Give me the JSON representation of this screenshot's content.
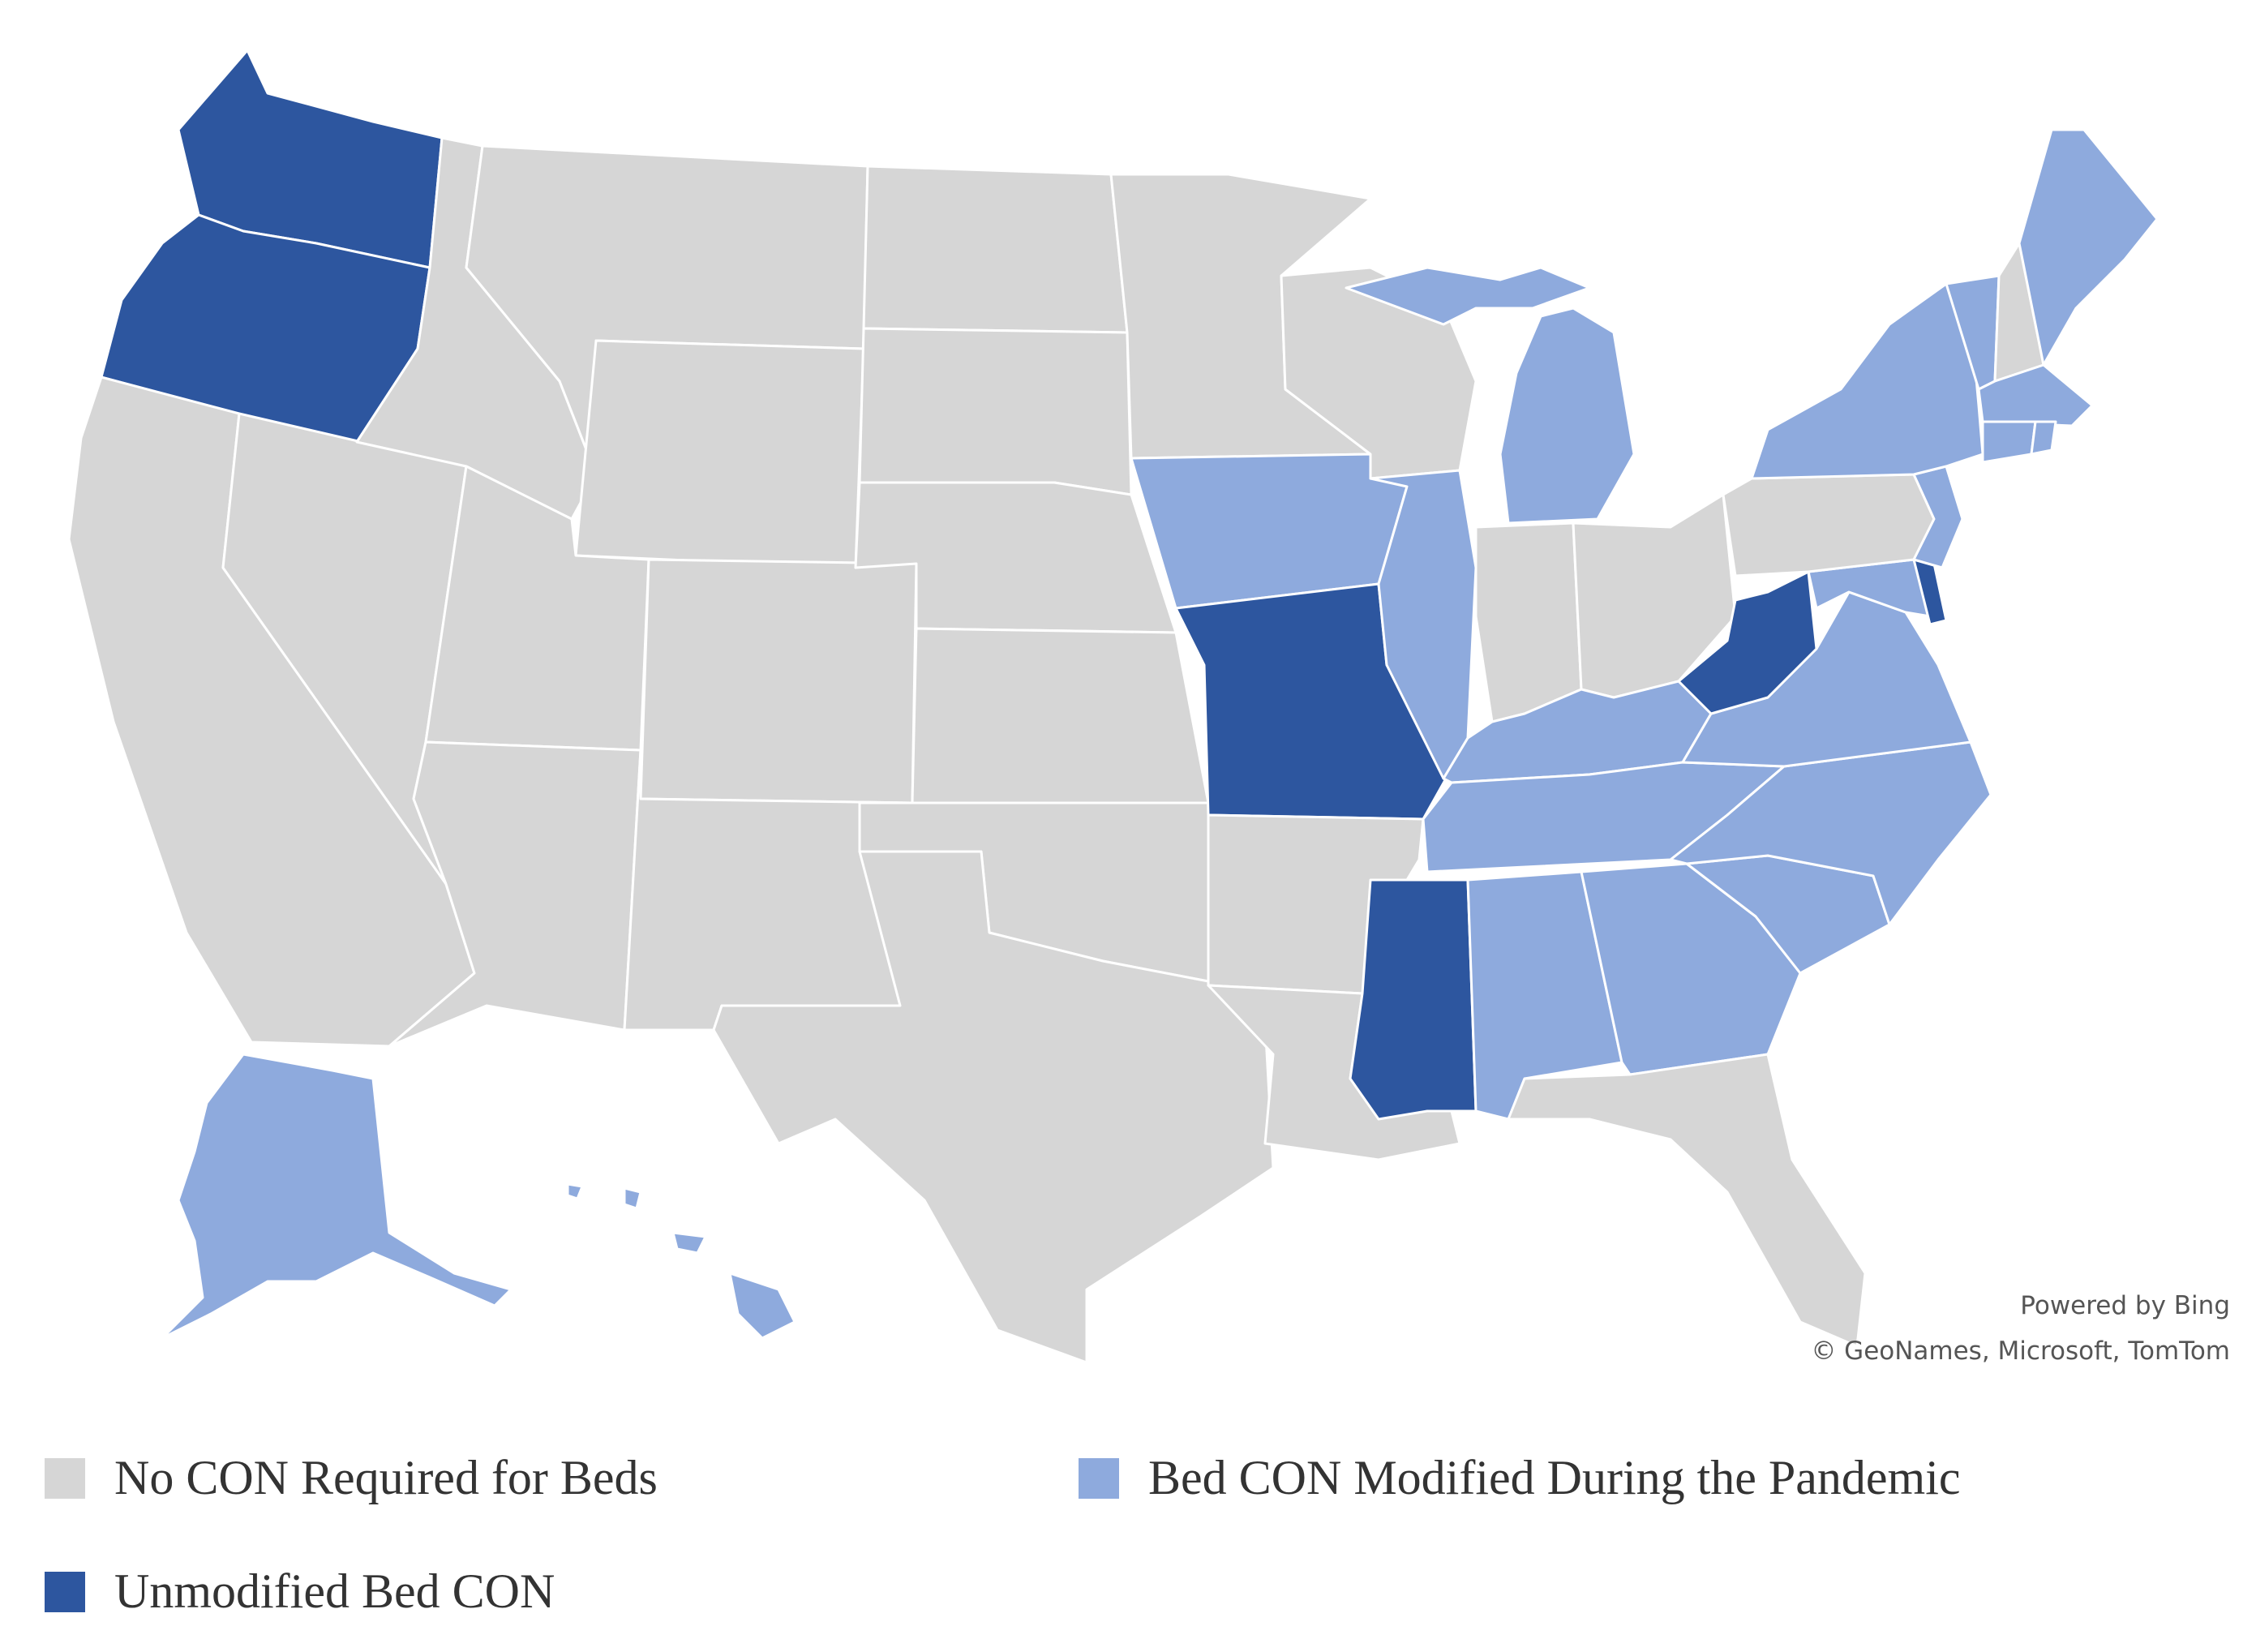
{
  "colors": {
    "no_con": "#d6d6d6",
    "modified": "#8eaadd",
    "unmodified": "#2d569f"
  },
  "attribution": {
    "powered": "Powered by Bing",
    "copyright": "© GeoNames, Microsoft, TomTom"
  },
  "legend": [
    {
      "label": "No CON Required for Beds",
      "category": "no_con"
    },
    {
      "label": "Bed CON Modified During the Pandemic",
      "category": "modified"
    },
    {
      "label": "Unmodified Bed CON",
      "category": "unmodified"
    }
  ],
  "regions": [
    {
      "name": "region-washington",
      "category": "unmodified"
    },
    {
      "name": "region-oregon",
      "category": "unmodified"
    },
    {
      "name": "region-missouri",
      "category": "unmodified"
    },
    {
      "name": "region-mississippi",
      "category": "unmodified"
    },
    {
      "name": "region-west-virginia",
      "category": "unmodified"
    },
    {
      "name": "region-delaware",
      "category": "unmodified"
    },
    {
      "name": "region-iowa",
      "category": "modified"
    },
    {
      "name": "region-illinois",
      "category": "modified"
    },
    {
      "name": "region-michigan-lower",
      "category": "modified"
    },
    {
      "name": "region-michigan-upper",
      "category": "modified"
    },
    {
      "name": "region-kentucky",
      "category": "modified"
    },
    {
      "name": "region-tennessee",
      "category": "modified"
    },
    {
      "name": "region-alabama",
      "category": "modified"
    },
    {
      "name": "region-georgia",
      "category": "modified"
    },
    {
      "name": "region-south-carolina",
      "category": "modified"
    },
    {
      "name": "region-north-carolina",
      "category": "modified"
    },
    {
      "name": "region-virginia",
      "category": "modified"
    },
    {
      "name": "region-maryland",
      "category": "modified"
    },
    {
      "name": "region-new-jersey",
      "category": "modified"
    },
    {
      "name": "region-new-york",
      "category": "modified"
    },
    {
      "name": "region-vermont",
      "category": "modified"
    },
    {
      "name": "region-maine",
      "category": "modified"
    },
    {
      "name": "region-massachusetts",
      "category": "modified"
    },
    {
      "name": "region-connecticut",
      "category": "modified"
    },
    {
      "name": "region-rhode-island",
      "category": "modified"
    },
    {
      "name": "region-alaska",
      "category": "modified"
    },
    {
      "name": "region-hawaii",
      "category": "modified"
    },
    {
      "name": "region-california",
      "category": "no_con"
    },
    {
      "name": "region-nevada",
      "category": "no_con"
    },
    {
      "name": "region-idaho",
      "category": "no_con"
    },
    {
      "name": "region-montana",
      "category": "no_con"
    },
    {
      "name": "region-wyoming",
      "category": "no_con"
    },
    {
      "name": "region-utah",
      "category": "no_con"
    },
    {
      "name": "region-arizona",
      "category": "no_con"
    },
    {
      "name": "region-colorado",
      "category": "no_con"
    },
    {
      "name": "region-new-mexico",
      "category": "no_con"
    },
    {
      "name": "region-north-dakota",
      "category": "no_con"
    },
    {
      "name": "region-south-dakota",
      "category": "no_con"
    },
    {
      "name": "region-nebraska",
      "category": "no_con"
    },
    {
      "name": "region-kansas",
      "category": "no_con"
    },
    {
      "name": "region-oklahoma",
      "category": "no_con"
    },
    {
      "name": "region-texas",
      "category": "no_con"
    },
    {
      "name": "region-minnesota",
      "category": "no_con"
    },
    {
      "name": "region-wisconsin",
      "category": "no_con"
    },
    {
      "name": "region-arkansas",
      "category": "no_con"
    },
    {
      "name": "region-louisiana",
      "category": "no_con"
    },
    {
      "name": "region-indiana",
      "category": "no_con"
    },
    {
      "name": "region-ohio",
      "category": "no_con"
    },
    {
      "name": "region-pennsylvania",
      "category": "no_con"
    },
    {
      "name": "region-new-hampshire",
      "category": "no_con"
    },
    {
      "name": "region-florida",
      "category": "no_con"
    }
  ]
}
